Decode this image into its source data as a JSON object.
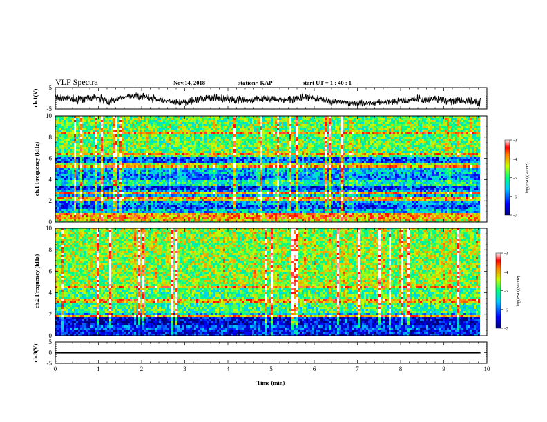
{
  "header": {
    "title": "VLF Spectra",
    "date": "Nov.14, 2018",
    "station": "station= KAP",
    "start": "start UT = 1 : 40 : 1"
  },
  "chart_data": [
    {
      "type": "line",
      "panel": "ch1-waveform",
      "ylabel": "ch.1(V)",
      "ylim": [
        -5,
        5
      ],
      "y_ticks": [
        "5",
        "-5"
      ],
      "xlim": [
        0,
        10
      ],
      "x_end": 9.85,
      "series": [
        {
          "values_min": [
            -1.6,
            -1.8,
            -3.2,
            -1.5,
            -2.4,
            -3.8,
            -0.9,
            -0.5,
            -1.2,
            -2.2,
            -2.6,
            -3.5,
            -4.0,
            -3.2,
            -1.8,
            -2.0,
            -3.0,
            -2.6,
            -2.4,
            -2.0,
            -2.2,
            -2.6,
            -2.8,
            -1.2,
            -2.0,
            -3.4,
            -3.0,
            -4.2,
            -4.0,
            -3.8,
            -3.5,
            -3.8,
            -3.2,
            -3.0,
            -2.7,
            -2.9,
            -3.3,
            -3.1,
            -3.4,
            -4.0
          ],
          "values_max": [
            2.4,
            2.0,
            1.8,
            1.6,
            2.4,
            0.4,
            1.4,
            2.6,
            2.6,
            2.2,
            0.8,
            -0.4,
            0.0,
            1.6,
            2.2,
            2.6,
            2.4,
            1.0,
            1.2,
            1.6,
            1.8,
            0.6,
            1.8,
            2.8,
            1.8,
            0.6,
            -0.4,
            -1.2,
            -0.8,
            -0.8,
            -0.2,
            0.2,
            0.8,
            2.2,
            1.6,
            1.4,
            1.2,
            1.0,
            0.8,
            0.4
          ]
        }
      ]
    },
    {
      "type": "heatmap",
      "panel": "ch1-spectrogram",
      "ylabel": "ch.1 Frequency (kHz)",
      "ylim": [
        0,
        10
      ],
      "y_ticks": [
        "0",
        "2",
        "4",
        "6",
        "8",
        "10"
      ],
      "xlim": [
        0,
        10
      ],
      "x_end": 9.85,
      "clim": [
        -7,
        -3
      ],
      "colorbar_label": "log(PSD)(V²/Hz)",
      "colorbar_ticks": [
        "-3",
        "-4",
        "-5",
        "-6",
        "-7"
      ],
      "bands_khz": [
        [
          0,
          0.3,
          -4.2
        ],
        [
          0.3,
          0.8,
          -3.9
        ],
        [
          0.8,
          1.2,
          -5.6
        ],
        [
          1.2,
          1.6,
          -6.2
        ],
        [
          1.6,
          2.0,
          -5.8
        ],
        [
          2.0,
          2.5,
          -4.3
        ],
        [
          2.5,
          3.0,
          -5.7
        ],
        [
          3.0,
          3.4,
          -6.3
        ],
        [
          3.4,
          4.0,
          -5.2
        ],
        [
          4.0,
          4.5,
          -5.9
        ],
        [
          4.5,
          5.2,
          -5.6
        ],
        [
          5.2,
          5.6,
          -4.5
        ],
        [
          5.6,
          6.2,
          -6.1
        ],
        [
          6.2,
          10.0,
          -4.8
        ]
      ],
      "lines_khz": [
        2.3,
        2.6,
        5.3,
        6.4,
        8.3
      ]
    },
    {
      "type": "heatmap",
      "panel": "ch2-spectrogram",
      "ylabel": "ch.2 Frequency (kHz)",
      "ylim": [
        0,
        10
      ],
      "y_ticks": [
        "0",
        "2",
        "4",
        "6",
        "8",
        "10"
      ],
      "xlim": [
        0,
        10
      ],
      "x_end": 9.85,
      "clim": [
        -7,
        -3
      ],
      "colorbar_label": "log(PSD)(V²/Hz)",
      "colorbar_ticks": [
        "-3",
        "-4",
        "-5",
        "-6",
        "-7"
      ],
      "bands_khz": [
        [
          0,
          0.6,
          -6.4
        ],
        [
          0.6,
          1.0,
          -6.2
        ],
        [
          1.0,
          1.8,
          -6.6
        ],
        [
          1.8,
          2.2,
          -5.6
        ],
        [
          2.2,
          3.0,
          -5.0
        ],
        [
          3.0,
          3.5,
          -4.1
        ],
        [
          3.5,
          4.5,
          -4.9
        ],
        [
          4.5,
          10.0,
          -4.6
        ]
      ],
      "lines_khz": [
        1.9,
        3.3,
        4.6
      ]
    },
    {
      "type": "line",
      "panel": "ch3-waveform",
      "ylabel": "ch.3(V)",
      "ylim": [
        -5,
        5
      ],
      "y_ticks": [
        "5",
        "0",
        "-5"
      ],
      "xlim": [
        0,
        10
      ],
      "x_end": 9.85,
      "xlabel": "Time (min)",
      "x_ticks": [
        "0",
        "1",
        "2",
        "3",
        "4",
        "5",
        "6",
        "7",
        "8",
        "9",
        "10"
      ],
      "series": [
        {
          "values_min": [
            -0.35
          ],
          "values_max": [
            0.35
          ]
        }
      ]
    }
  ]
}
